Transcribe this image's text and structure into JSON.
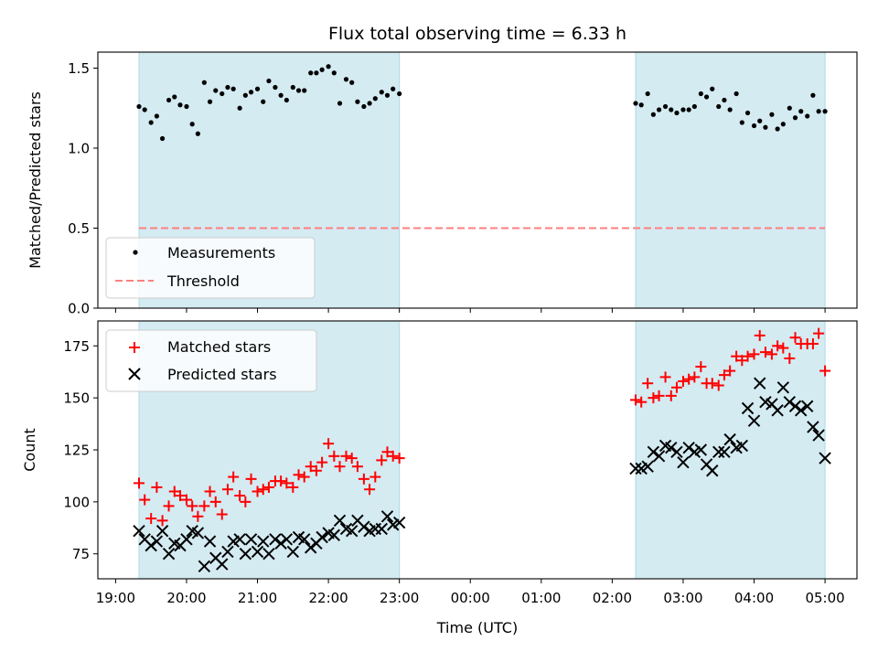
{
  "chart_data": [
    {
      "type": "scatter",
      "title": "Flux total observing time = 6.33 h",
      "ylabel": "Matched/Predicted stars",
      "xlabel": "",
      "ylim": [
        0,
        1.6
      ],
      "yticks": [
        0.0,
        0.5,
        1.0,
        1.5
      ],
      "ytick_labels": [
        "0.0",
        "0.5",
        "1.0",
        "1.5"
      ],
      "x_unit": "hours since 19:00 UTC",
      "xlim": [
        -0.25,
        10.45
      ],
      "shaded_intervals": [
        [
          0.33,
          4.0
        ],
        [
          7.33,
          10.0
        ]
      ],
      "shade_color": "#d4ebf2",
      "legend": {
        "location": "lower-left",
        "entries": [
          "Measurements",
          "Threshold"
        ]
      },
      "series": [
        {
          "name": "Measurements",
          "marker": "dot",
          "color": "#000000",
          "x": [
            0.33,
            0.41,
            0.5,
            0.58,
            0.66,
            0.75,
            0.83,
            0.91,
            1.0,
            1.08,
            1.16,
            1.25,
            1.33,
            1.41,
            1.5,
            1.58,
            1.66,
            1.75,
            1.83,
            1.91,
            2.0,
            2.08,
            2.16,
            2.25,
            2.33,
            2.41,
            2.5,
            2.58,
            2.66,
            2.75,
            2.83,
            2.91,
            3.0,
            3.08,
            3.16,
            3.25,
            3.33,
            3.41,
            3.5,
            3.58,
            3.66,
            3.75,
            3.83,
            3.91,
            4.0,
            7.33,
            7.41,
            7.5,
            7.58,
            7.66,
            7.75,
            7.83,
            7.91,
            8.0,
            8.08,
            8.16,
            8.25,
            8.33,
            8.41,
            8.5,
            8.58,
            8.66,
            8.75,
            8.83,
            8.91,
            9.0,
            9.08,
            9.16,
            9.25,
            9.33,
            9.41,
            9.5,
            9.58,
            9.66,
            9.75,
            9.83,
            9.91,
            10.0
          ],
          "y": [
            1.26,
            1.24,
            1.16,
            1.2,
            1.06,
            1.3,
            1.32,
            1.27,
            1.26,
            1.15,
            1.09,
            1.41,
            1.29,
            1.36,
            1.34,
            1.38,
            1.37,
            1.25,
            1.33,
            1.35,
            1.37,
            1.29,
            1.42,
            1.38,
            1.33,
            1.3,
            1.38,
            1.36,
            1.36,
            1.47,
            1.47,
            1.49,
            1.51,
            1.47,
            1.28,
            1.43,
            1.41,
            1.29,
            1.26,
            1.28,
            1.31,
            1.35,
            1.33,
            1.37,
            1.34,
            1.28,
            1.27,
            1.34,
            1.21,
            1.24,
            1.26,
            1.24,
            1.22,
            1.24,
            1.24,
            1.26,
            1.34,
            1.32,
            1.37,
            1.26,
            1.3,
            1.24,
            1.34,
            1.16,
            1.22,
            1.14,
            1.17,
            1.13,
            1.21,
            1.12,
            1.15,
            1.25,
            1.19,
            1.23,
            1.2,
            1.33,
            1.23,
            1.23
          ]
        },
        {
          "name": "Threshold",
          "style": "dashed",
          "color": "#ff7f7f",
          "x": [
            0.33,
            10.0
          ],
          "y": [
            0.5,
            0.5
          ]
        }
      ]
    },
    {
      "type": "scatter",
      "title": "",
      "xlabel": "Time (UTC)",
      "ylabel": "Count",
      "ylim": [
        63,
        187
      ],
      "yticks": [
        75,
        100,
        125,
        150,
        175
      ],
      "ytick_labels": [
        "75",
        "100",
        "125",
        "150",
        "175"
      ],
      "x_unit": "hours since 19:00 UTC",
      "xlim": [
        -0.25,
        10.45
      ],
      "xticks": [
        0,
        1,
        2,
        3,
        4,
        5,
        6,
        7,
        8,
        9,
        10
      ],
      "xtick_labels": [
        "19:00",
        "20:00",
        "21:00",
        "22:00",
        "23:00",
        "00:00",
        "01:00",
        "02:00",
        "03:00",
        "04:00",
        "05:00"
      ],
      "shaded_intervals": [
        [
          0.33,
          4.0
        ],
        [
          7.33,
          10.0
        ]
      ],
      "shade_color": "#d4ebf2",
      "legend": {
        "location": "upper-left",
        "entries": [
          "Matched stars",
          "Predicted stars"
        ]
      },
      "series": [
        {
          "name": "Matched stars",
          "marker": "plus",
          "color": "#ff0000",
          "x": [
            0.33,
            0.41,
            0.5,
            0.58,
            0.66,
            0.75,
            0.83,
            0.91,
            1.0,
            1.08,
            1.16,
            1.25,
            1.33,
            1.41,
            1.5,
            1.58,
            1.66,
            1.75,
            1.83,
            1.91,
            2.0,
            2.08,
            2.16,
            2.25,
            2.33,
            2.41,
            2.5,
            2.58,
            2.66,
            2.75,
            2.83,
            2.91,
            3.0,
            3.08,
            3.16,
            3.25,
            3.33,
            3.41,
            3.5,
            3.58,
            3.66,
            3.75,
            3.83,
            3.91,
            4.0,
            7.33,
            7.41,
            7.5,
            7.58,
            7.66,
            7.75,
            7.83,
            7.91,
            8.0,
            8.08,
            8.16,
            8.25,
            8.33,
            8.41,
            8.5,
            8.58,
            8.66,
            8.75,
            8.83,
            8.91,
            9.0,
            9.08,
            9.16,
            9.25,
            9.33,
            9.41,
            9.5,
            9.58,
            9.66,
            9.75,
            9.83,
            9.91,
            10.0
          ],
          "y": [
            109,
            101,
            92,
            107,
            91,
            98,
            105,
            103,
            101,
            98,
            93,
            98,
            105,
            100,
            94,
            106,
            112,
            103,
            100,
            111,
            105,
            106,
            107,
            110,
            110,
            109,
            107,
            113,
            112,
            117,
            115,
            119,
            128,
            122,
            117,
            122,
            121,
            117,
            111,
            106,
            112,
            120,
            124,
            122,
            121,
            149,
            148,
            157,
            150,
            151,
            160,
            151,
            155,
            158,
            159,
            160,
            165,
            157,
            157,
            156,
            161,
            163,
            170,
            168,
            170,
            171,
            180,
            172,
            171,
            175,
            174,
            169,
            179,
            176,
            176,
            176,
            181,
            163
          ]
        },
        {
          "name": "Predicted stars",
          "marker": "x",
          "color": "#000000",
          "x": [
            0.33,
            0.41,
            0.5,
            0.58,
            0.66,
            0.75,
            0.83,
            0.91,
            1.0,
            1.08,
            1.16,
            1.25,
            1.33,
            1.41,
            1.5,
            1.58,
            1.66,
            1.75,
            1.83,
            1.91,
            2.0,
            2.08,
            2.16,
            2.25,
            2.33,
            2.41,
            2.5,
            2.58,
            2.66,
            2.75,
            2.83,
            2.91,
            3.0,
            3.08,
            3.16,
            3.25,
            3.33,
            3.41,
            3.5,
            3.58,
            3.66,
            3.75,
            3.83,
            3.91,
            4.0,
            7.33,
            7.41,
            7.5,
            7.58,
            7.66,
            7.75,
            7.83,
            7.91,
            8.0,
            8.08,
            8.16,
            8.25,
            8.33,
            8.41,
            8.5,
            8.58,
            8.66,
            8.75,
            8.83,
            8.91,
            9.0,
            9.08,
            9.16,
            9.25,
            9.33,
            9.41,
            9.5,
            9.58,
            9.66,
            9.75,
            9.83,
            9.91,
            10.0
          ],
          "y": [
            86,
            82,
            79,
            81,
            86,
            75,
            80,
            79,
            82,
            86,
            85,
            69,
            81,
            73,
            70,
            76,
            81,
            82,
            75,
            82,
            76,
            81,
            75,
            82,
            80,
            82,
            76,
            83,
            82,
            78,
            80,
            83,
            85,
            84,
            91,
            87,
            86,
            91,
            88,
            86,
            87,
            87,
            93,
            89,
            90,
            116,
            116,
            117,
            124,
            122,
            127,
            126,
            124,
            119,
            126,
            124,
            125,
            118,
            115,
            124,
            124,
            130,
            126,
            127,
            145,
            139,
            157,
            148,
            147,
            144,
            155,
            148,
            146,
            144,
            146,
            136,
            132,
            121
          ]
        }
      ]
    }
  ]
}
